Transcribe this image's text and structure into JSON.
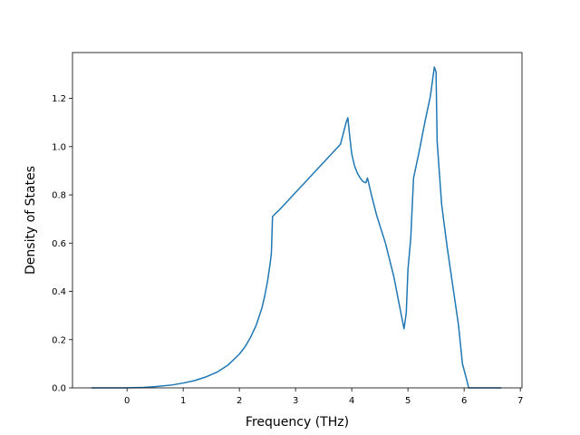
{
  "chart_data": {
    "type": "line",
    "xlabel": "Frequency (THz)",
    "ylabel": "Density of States",
    "xlim": [
      -0.97,
      7.03
    ],
    "ylim": [
      0.0,
      1.39
    ],
    "grid": false,
    "x_ticks": [
      0,
      1,
      2,
      3,
      4,
      5,
      6,
      7
    ],
    "x_tick_labels": [
      "0",
      "1",
      "2",
      "3",
      "4",
      "5",
      "6",
      "7"
    ],
    "y_ticks": [
      0.0,
      0.2,
      0.4,
      0.6,
      0.8,
      1.0,
      1.2
    ],
    "y_tick_labels": [
      "0.0",
      "0.2",
      "0.4",
      "0.6",
      "0.8",
      "1.0",
      "1.2"
    ],
    "series": [
      {
        "color": "#1f77b4",
        "points": [
          [
            -0.62,
            0.0
          ],
          [
            0.0,
            0.0
          ],
          [
            0.3,
            0.002
          ],
          [
            0.5,
            0.005
          ],
          [
            0.8,
            0.012
          ],
          [
            1.0,
            0.02
          ],
          [
            1.2,
            0.03
          ],
          [
            1.4,
            0.045
          ],
          [
            1.6,
            0.065
          ],
          [
            1.8,
            0.095
          ],
          [
            2.0,
            0.14
          ],
          [
            2.1,
            0.17
          ],
          [
            2.2,
            0.21
          ],
          [
            2.3,
            0.26
          ],
          [
            2.4,
            0.33
          ],
          [
            2.45,
            0.38
          ],
          [
            2.5,
            0.44
          ],
          [
            2.55,
            0.52
          ],
          [
            2.57,
            0.56
          ],
          [
            2.59,
            0.71
          ],
          [
            2.63,
            0.72
          ],
          [
            2.7,
            0.735
          ],
          [
            2.8,
            0.76
          ],
          [
            3.0,
            0.81
          ],
          [
            3.2,
            0.86
          ],
          [
            3.4,
            0.91
          ],
          [
            3.6,
            0.96
          ],
          [
            3.8,
            1.01
          ],
          [
            3.9,
            1.1
          ],
          [
            3.93,
            1.12
          ],
          [
            3.97,
            1.03
          ],
          [
            4.0,
            0.97
          ],
          [
            4.05,
            0.92
          ],
          [
            4.1,
            0.89
          ],
          [
            4.15,
            0.87
          ],
          [
            4.2,
            0.855
          ],
          [
            4.25,
            0.85
          ],
          [
            4.28,
            0.87
          ],
          [
            4.3,
            0.85
          ],
          [
            4.35,
            0.8
          ],
          [
            4.45,
            0.71
          ],
          [
            4.6,
            0.6
          ],
          [
            4.75,
            0.46
          ],
          [
            4.85,
            0.34
          ],
          [
            4.93,
            0.245
          ],
          [
            4.97,
            0.31
          ],
          [
            5.0,
            0.49
          ],
          [
            5.05,
            0.62
          ],
          [
            5.1,
            0.87
          ],
          [
            5.2,
            0.98
          ],
          [
            5.3,
            1.1
          ],
          [
            5.4,
            1.21
          ],
          [
            5.47,
            1.33
          ],
          [
            5.5,
            1.31
          ],
          [
            5.52,
            1.02
          ],
          [
            5.6,
            0.76
          ],
          [
            5.7,
            0.58
          ],
          [
            5.8,
            0.42
          ],
          [
            5.9,
            0.26
          ],
          [
            5.97,
            0.1
          ],
          [
            6.05,
            0.03
          ],
          [
            6.08,
            0.0
          ],
          [
            6.65,
            0.0
          ]
        ]
      }
    ]
  }
}
